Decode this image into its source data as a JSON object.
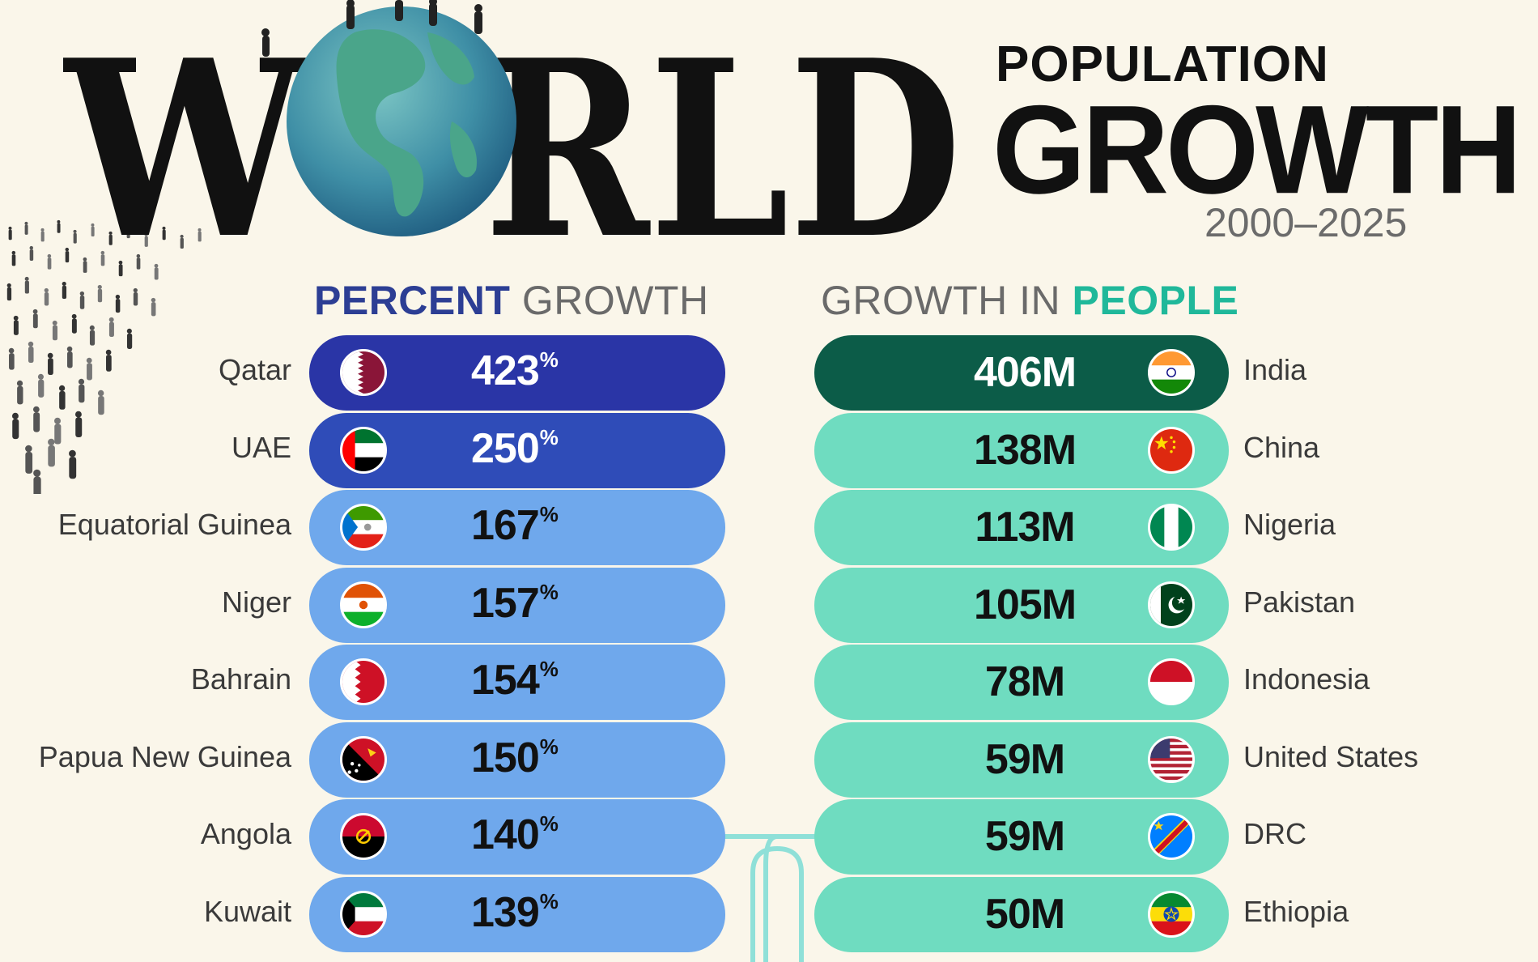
{
  "header": {
    "title_word": "WORLD",
    "title_left": "W",
    "title_right": "RLD",
    "subtitle_top": "POPULATION",
    "subtitle_main": "GROWTH",
    "years": "2000–2025"
  },
  "sections": {
    "percent_bold": "PERCENT",
    "percent_rest": " GROWTH",
    "people_rest": "GROWTH IN ",
    "people_bold": "PEOPLE"
  },
  "colors": {
    "background": "#faf6ea",
    "percent_top": "#2a35a6",
    "percent_second": "#2f4cb8",
    "percent_rest": "#6fa8ec",
    "people_top": "#0c5c48",
    "people_rest": "#6fdcc0"
  },
  "chart_data": [
    {
      "type": "bar",
      "title": "PERCENT GROWTH",
      "unit": "%",
      "categories": [
        "Qatar",
        "UAE",
        "Equatorial Guinea",
        "Niger",
        "Bahrain",
        "Papua New Guinea",
        "Angola",
        "Kuwait"
      ],
      "values": [
        423,
        250,
        167,
        157,
        154,
        150,
        140,
        139
      ],
      "labels": [
        "423",
        "250",
        "167",
        "157",
        "154",
        "150",
        "140",
        "139"
      ],
      "flags": [
        "qatar-flag-icon",
        "uae-flag-icon",
        "equatorial-guinea-flag-icon",
        "niger-flag-icon",
        "bahrain-flag-icon",
        "png-flag-icon",
        "angola-flag-icon",
        "kuwait-flag-icon"
      ]
    },
    {
      "type": "bar",
      "title": "GROWTH IN PEOPLE",
      "unit": "M",
      "categories": [
        "India",
        "China",
        "Nigeria",
        "Pakistan",
        "Indonesia",
        "United States",
        "DRC",
        "Ethiopia"
      ],
      "values": [
        406,
        138,
        113,
        105,
        78,
        59,
        59,
        50
      ],
      "labels": [
        "406M",
        "138M",
        "113M",
        "105M",
        "78M",
        "59M",
        "59M",
        "50M"
      ],
      "flags": [
        "india-flag-icon",
        "china-flag-icon",
        "nigeria-flag-icon",
        "pakistan-flag-icon",
        "indonesia-flag-icon",
        "usa-flag-icon",
        "drc-flag-icon",
        "ethiopia-flag-icon"
      ]
    }
  ]
}
